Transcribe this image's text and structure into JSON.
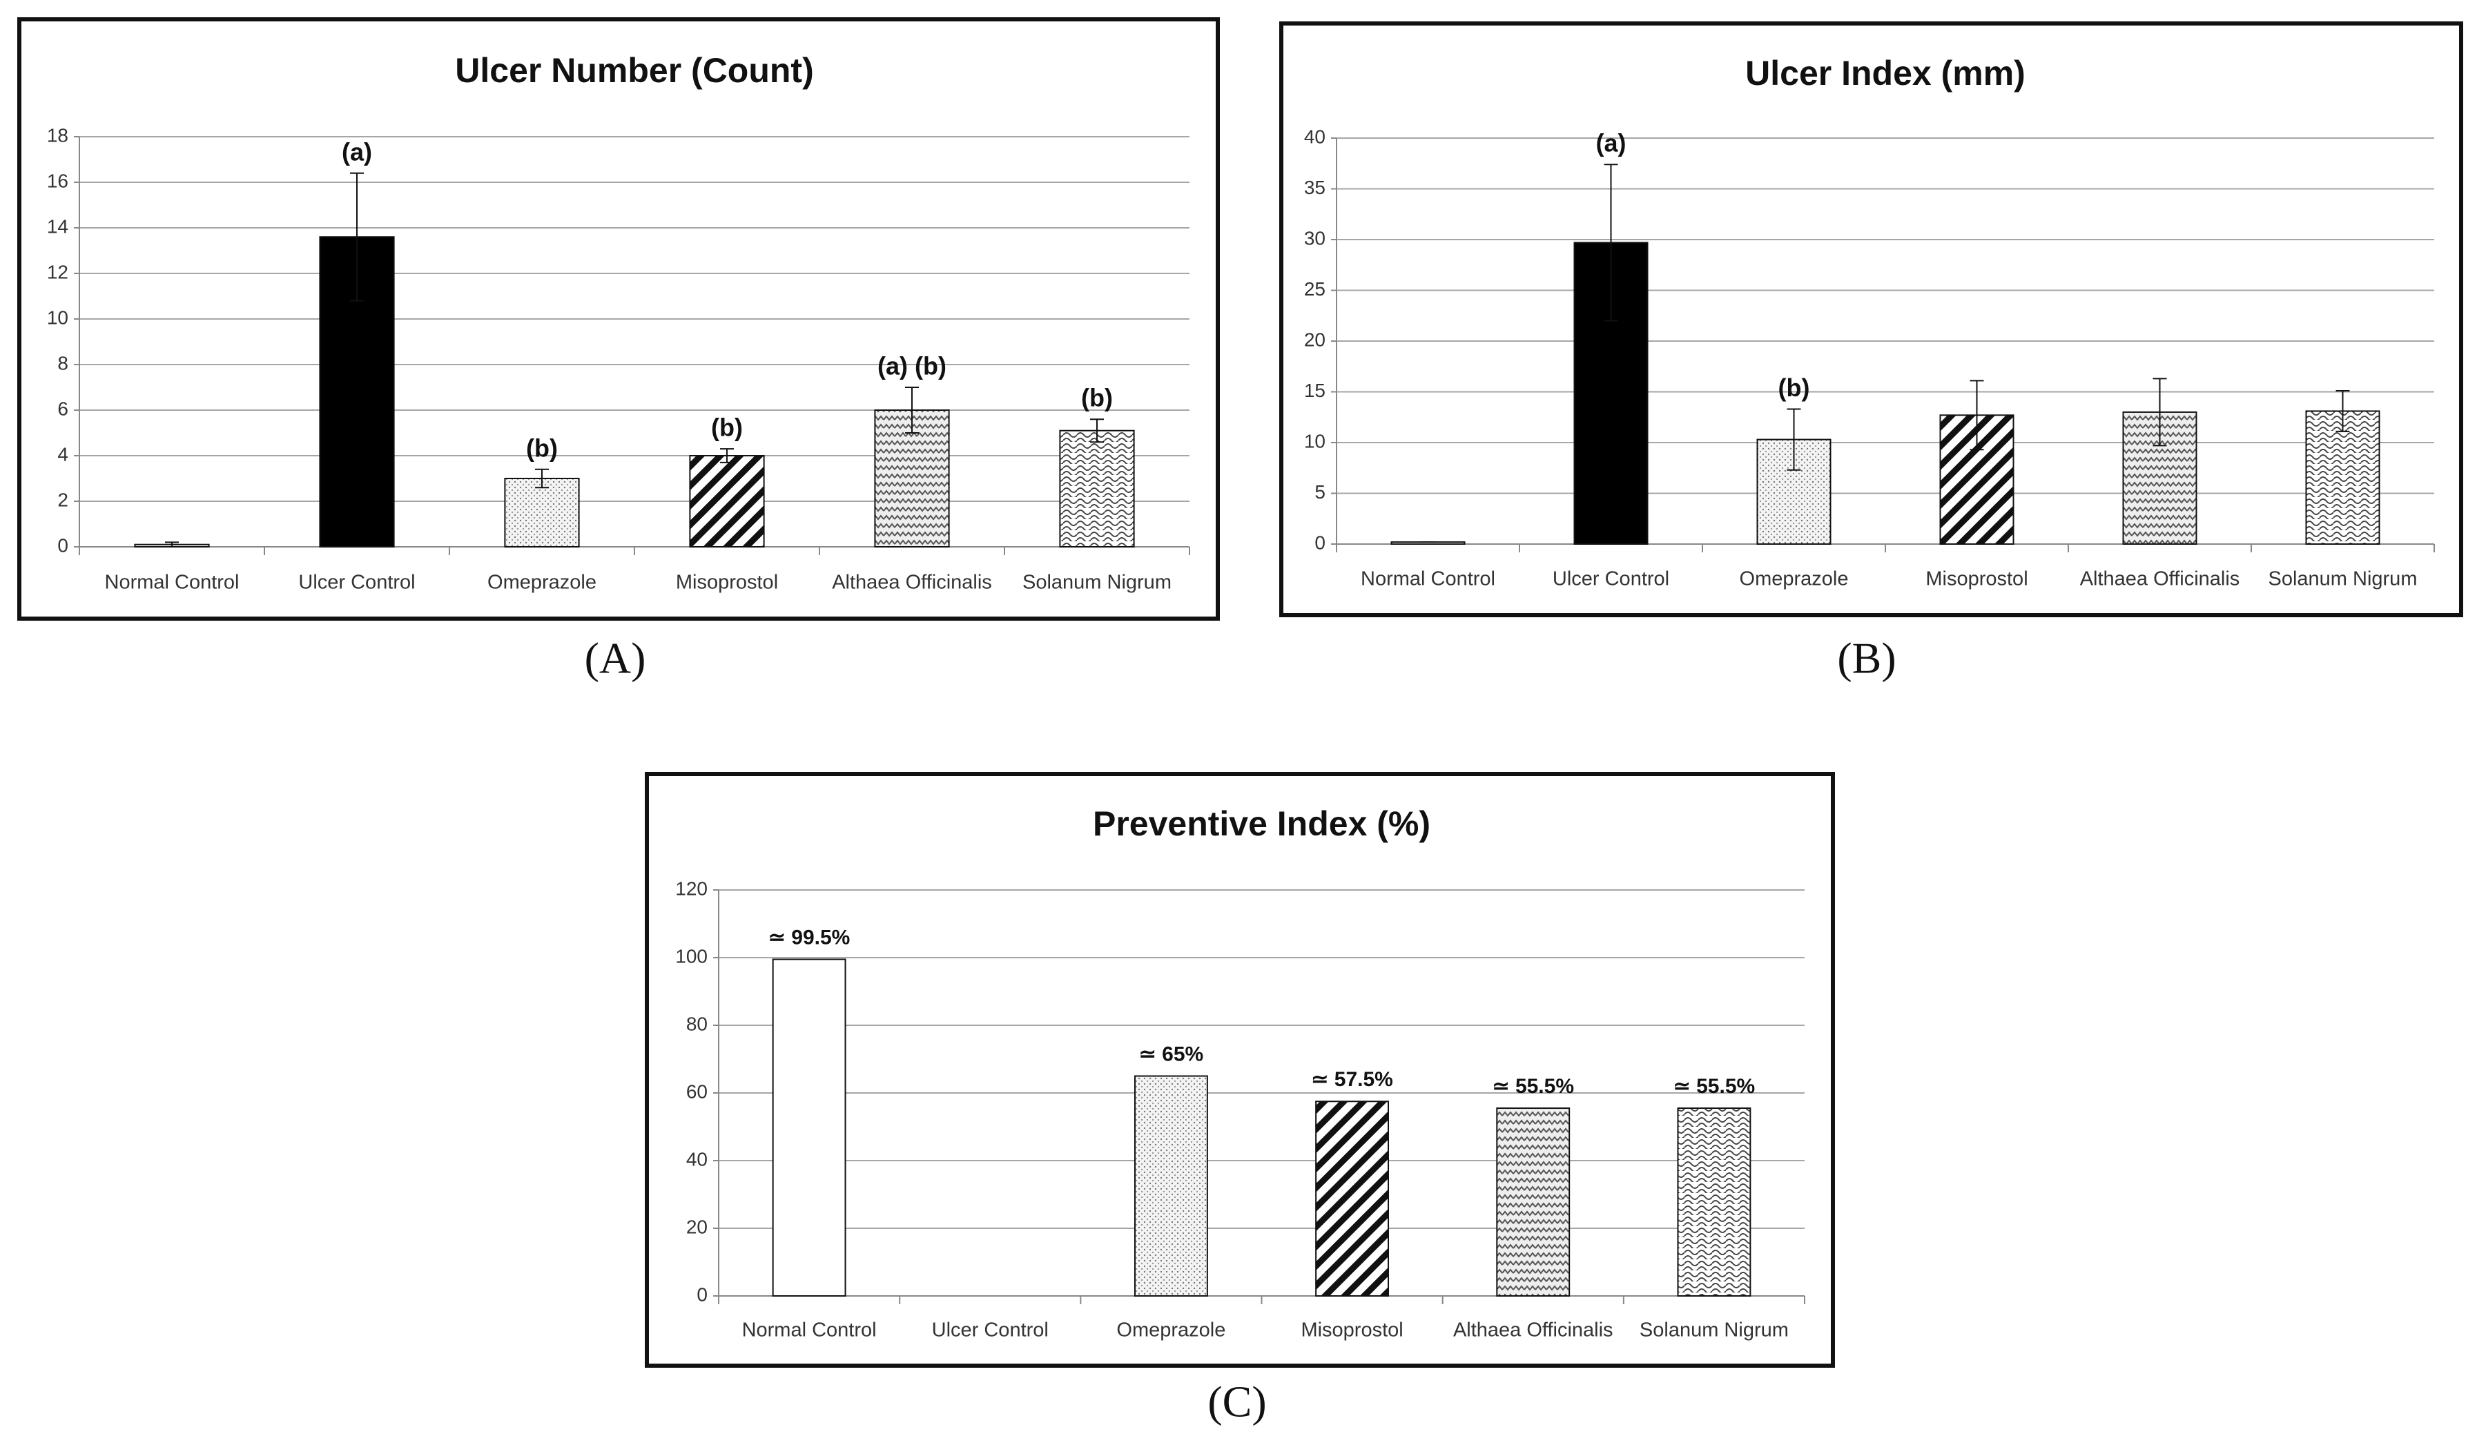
{
  "chart_data": [
    {
      "type": "bar",
      "title": "Ulcer Number (Count)",
      "panel_label": "(A)",
      "categories": [
        "Normal Control",
        "Ulcer Control",
        "Omeprazole",
        "Misoprostol",
        "Althaea Officinalis",
        "Solanum Nigrum"
      ],
      "values": [
        0.1,
        13.6,
        3.0,
        4.0,
        6.0,
        5.1
      ],
      "errors": [
        0.1,
        2.8,
        0.4,
        0.3,
        1.0,
        0.5
      ],
      "annotations": [
        null,
        "(a)",
        "(b)",
        "(b)",
        "(a) (b)",
        "(b)"
      ],
      "bar_styles": [
        "white",
        "solid",
        "dots",
        "diagonal",
        "zigzag",
        "waves"
      ],
      "color": "#000000",
      "ylim": [
        0,
        18
      ],
      "yticks": [
        0,
        2,
        4,
        6,
        8,
        10,
        12,
        14,
        16,
        18
      ],
      "grid": true
    },
    {
      "type": "bar",
      "title": "Ulcer Index (mm)",
      "panel_label": "(B)",
      "categories": [
        "Normal Control",
        "Ulcer Control",
        "Omeprazole",
        "Misoprostol",
        "Althaea Officinalis",
        "Solanum Nigrum"
      ],
      "values": [
        0.2,
        29.7,
        10.3,
        12.7,
        13.0,
        13.1
      ],
      "errors": [
        0.0,
        7.7,
        3.0,
        3.4,
        3.3,
        2.0
      ],
      "annotations": [
        null,
        "(a)",
        "(b)",
        null,
        null,
        null
      ],
      "bar_styles": [
        "white",
        "solid",
        "dots",
        "diagonal",
        "zigzag",
        "waves"
      ],
      "color": "#000000",
      "ylim": [
        0,
        40
      ],
      "yticks": [
        0,
        5,
        10,
        15,
        20,
        25,
        30,
        35,
        40
      ],
      "grid": true
    },
    {
      "type": "bar",
      "title": "Preventive Index (%)",
      "panel_label": "(C)",
      "categories": [
        "Normal Control",
        "Ulcer Control",
        "Omeprazole",
        "Misoprostol",
        "Althaea Officinalis",
        "Solanum Nigrum"
      ],
      "values": [
        99.5,
        null,
        65,
        57.5,
        55.5,
        55.5
      ],
      "value_labels": [
        "≃ 99.5%",
        null,
        "≃ 65%",
        "≃ 57.5%",
        "≃ 55.5%",
        "≃ 55.5%"
      ],
      "bar_styles": [
        "white",
        "solid",
        "dots",
        "diagonal",
        "zigzag",
        "waves"
      ],
      "color": "#000000",
      "ylim": [
        0,
        120
      ],
      "yticks": [
        0,
        20,
        40,
        60,
        80,
        100,
        120
      ],
      "grid": true
    }
  ]
}
